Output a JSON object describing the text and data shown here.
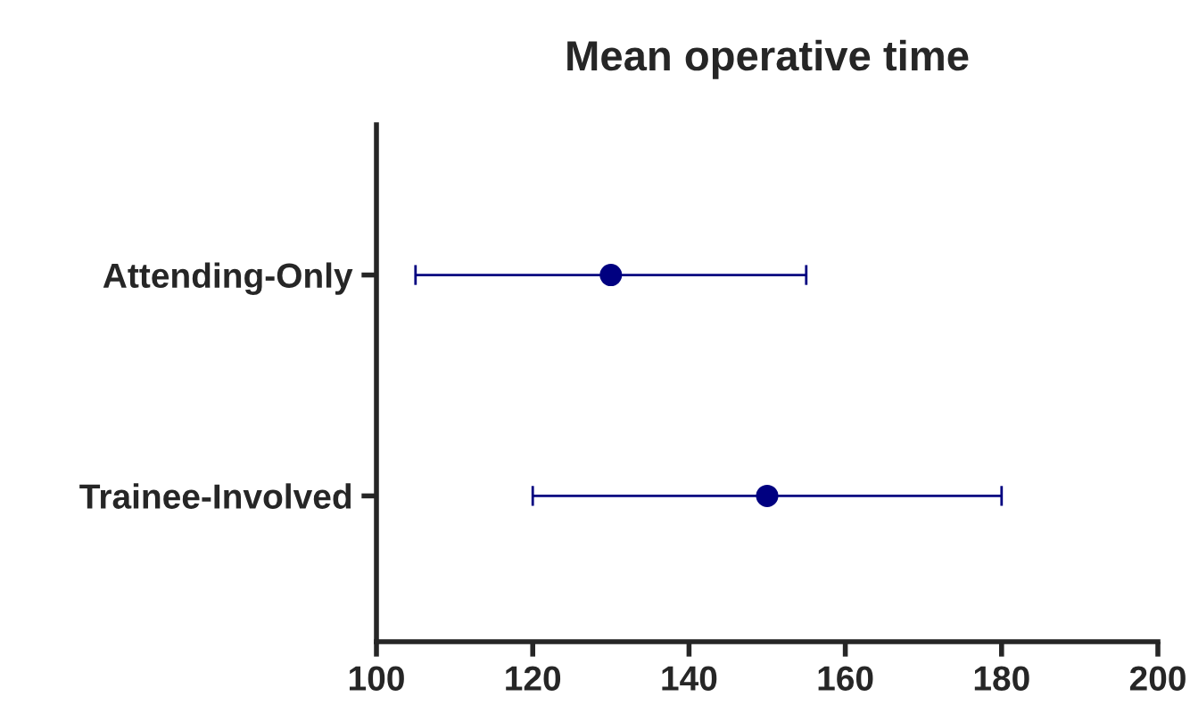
{
  "chart_data": {
    "type": "scatter",
    "title": "Mean operative time",
    "orientation": "horizontal",
    "categories": [
      "Attending-Only",
      "Trainee-Involved"
    ],
    "values": [
      130,
      150
    ],
    "errors": [
      25,
      30
    ],
    "color": "#000080",
    "marker": "circle",
    "xlim": [
      100,
      200
    ],
    "xticks": [
      100,
      120,
      140,
      160,
      180,
      200
    ],
    "grid": false,
    "legend": false
  }
}
